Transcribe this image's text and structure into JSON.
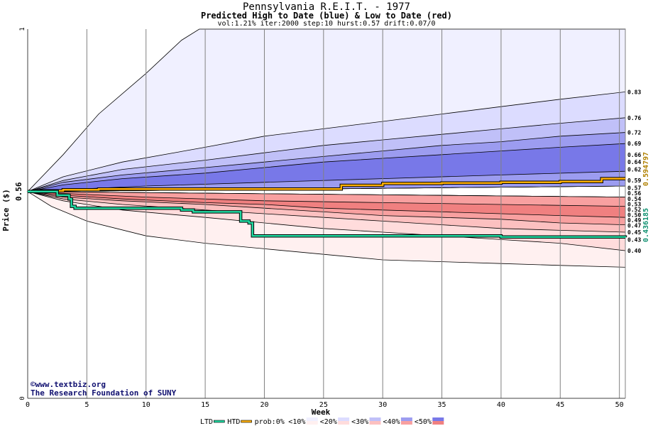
{
  "chart_data": {
    "type": "area",
    "title": "Pennsylvania R.E.I.T. - 1977",
    "subtitle": "Predicted High to Date (blue) &  Low to Date (red)",
    "params_line": "vol:1.21% iter:2000 step:10 hurst:0.57 drift:0.07/0",
    "xlabel": "Week",
    "ylabel": "Price ($)",
    "xlim": [
      0,
      50.5
    ],
    "ylim": [
      0,
      1
    ],
    "x_ticks": [
      0,
      5,
      10,
      15,
      20,
      25,
      30,
      35,
      40,
      45,
      50
    ],
    "y_ticks": [
      0,
      1
    ],
    "start_price": 0.56,
    "start_price_label": "0.56",
    "grid": true,
    "high_bands": [
      {
        "level": "<10%",
        "color": "#f0f0ff",
        "upper": [
          [
            0,
            0.56
          ],
          [
            3,
            0.66
          ],
          [
            6,
            0.77
          ],
          [
            10,
            0.88
          ],
          [
            13,
            0.97
          ],
          [
            14.5,
            1.0
          ],
          [
            50.5,
            1.0
          ]
        ],
        "lower": [
          [
            0,
            0.56
          ],
          [
            50.5,
            0.575
          ]
        ]
      },
      {
        "level": "<20%",
        "color": "#dcdcff",
        "upper": [
          [
            0,
            0.56
          ],
          [
            3,
            0.6
          ],
          [
            8,
            0.64
          ],
          [
            15,
            0.68
          ],
          [
            20,
            0.71
          ],
          [
            25,
            0.73
          ],
          [
            30,
            0.75
          ],
          [
            35,
            0.77
          ],
          [
            40,
            0.79
          ],
          [
            45,
            0.81
          ],
          [
            50.5,
            0.83
          ]
        ],
        "lower": [
          [
            0,
            0.56
          ],
          [
            50.5,
            0.575
          ]
        ]
      },
      {
        "level": "<30%",
        "color": "#c0c0f8",
        "upper": [
          [
            0,
            0.56
          ],
          [
            3,
            0.59
          ],
          [
            8,
            0.62
          ],
          [
            15,
            0.645
          ],
          [
            20,
            0.665
          ],
          [
            25,
            0.685
          ],
          [
            30,
            0.7
          ],
          [
            35,
            0.715
          ],
          [
            40,
            0.73
          ],
          [
            45,
            0.745
          ],
          [
            50.5,
            0.76
          ]
        ],
        "lower": [
          [
            0,
            0.56
          ],
          [
            50.5,
            0.575
          ]
        ]
      },
      {
        "level": "<40%",
        "color": "#9c9cf0",
        "upper": [
          [
            0,
            0.56
          ],
          [
            3,
            0.585
          ],
          [
            8,
            0.605
          ],
          [
            15,
            0.625
          ],
          [
            20,
            0.64
          ],
          [
            25,
            0.655
          ],
          [
            30,
            0.67
          ],
          [
            35,
            0.685
          ],
          [
            40,
            0.695
          ],
          [
            45,
            0.71
          ],
          [
            50.5,
            0.72
          ]
        ],
        "lower": [
          [
            0,
            0.56
          ],
          [
            50.5,
            0.575
          ]
        ]
      },
      {
        "level": "<50%",
        "color": "#7878e8",
        "upper": [
          [
            0,
            0.56
          ],
          [
            3,
            0.578
          ],
          [
            8,
            0.595
          ],
          [
            15,
            0.61
          ],
          [
            20,
            0.625
          ],
          [
            25,
            0.64
          ],
          [
            30,
            0.65
          ],
          [
            35,
            0.66
          ],
          [
            40,
            0.67
          ],
          [
            45,
            0.68
          ],
          [
            50.5,
            0.69
          ]
        ],
        "lower": [
          [
            0,
            0.56
          ],
          [
            3,
            0.565
          ],
          [
            10,
            0.575
          ],
          [
            20,
            0.585
          ],
          [
            30,
            0.595
          ],
          [
            40,
            0.605
          ],
          [
            50.5,
            0.615
          ]
        ]
      }
    ],
    "low_bands": [
      {
        "level": "<10%",
        "color": "#fff0f0",
        "upper": [
          [
            0,
            0.56
          ],
          [
            50.5,
            0.545
          ]
        ],
        "lower": [
          [
            0,
            0.56
          ],
          [
            2,
            0.52
          ],
          [
            5,
            0.48
          ],
          [
            10,
            0.44
          ],
          [
            15,
            0.42
          ],
          [
            20,
            0.405
          ],
          [
            25,
            0.39
          ],
          [
            30,
            0.375
          ],
          [
            35,
            0.37
          ],
          [
            40,
            0.365
          ],
          [
            45,
            0.36
          ],
          [
            50.5,
            0.355
          ]
        ]
      },
      {
        "level": "<20%",
        "color": "#ffdcdc",
        "upper": [
          [
            0,
            0.56
          ],
          [
            50.5,
            0.545
          ]
        ],
        "lower": [
          [
            0,
            0.56
          ],
          [
            3,
            0.535
          ],
          [
            8,
            0.51
          ],
          [
            15,
            0.49
          ],
          [
            20,
            0.475
          ],
          [
            25,
            0.46
          ],
          [
            30,
            0.45
          ],
          [
            35,
            0.44
          ],
          [
            40,
            0.43
          ],
          [
            45,
            0.42
          ],
          [
            50.5,
            0.4
          ]
        ]
      },
      {
        "level": "<30%",
        "color": "#fcc0c0",
        "upper": [
          [
            0,
            0.56
          ],
          [
            50.5,
            0.545
          ]
        ],
        "lower": [
          [
            0,
            0.56
          ],
          [
            3,
            0.54
          ],
          [
            8,
            0.525
          ],
          [
            15,
            0.51
          ],
          [
            20,
            0.5
          ],
          [
            25,
            0.49
          ],
          [
            30,
            0.48
          ],
          [
            35,
            0.47
          ],
          [
            40,
            0.46
          ],
          [
            45,
            0.455
          ],
          [
            50.5,
            0.45
          ]
        ]
      },
      {
        "level": "<40%",
        "color": "#f8a0a0",
        "upper": [
          [
            0,
            0.56
          ],
          [
            50.5,
            0.545
          ]
        ],
        "lower": [
          [
            0,
            0.56
          ],
          [
            3,
            0.545
          ],
          [
            8,
            0.535
          ],
          [
            15,
            0.525
          ],
          [
            20,
            0.515
          ],
          [
            25,
            0.505
          ],
          [
            30,
            0.495
          ],
          [
            35,
            0.49
          ],
          [
            40,
            0.485
          ],
          [
            45,
            0.475
          ],
          [
            50.5,
            0.47
          ]
        ]
      },
      {
        "level": "<50%",
        "color": "#f08080",
        "upper": [
          [
            0,
            0.56
          ],
          [
            3,
            0.555
          ],
          [
            10,
            0.545
          ],
          [
            20,
            0.535
          ],
          [
            30,
            0.53
          ],
          [
            40,
            0.525
          ],
          [
            50.5,
            0.52
          ]
        ],
        "lower": [
          [
            0,
            0.56
          ],
          [
            3,
            0.55
          ],
          [
            8,
            0.54
          ],
          [
            15,
            0.53
          ],
          [
            20,
            0.525
          ],
          [
            25,
            0.515
          ],
          [
            30,
            0.51
          ],
          [
            35,
            0.505
          ],
          [
            40,
            0.5
          ],
          [
            45,
            0.495
          ],
          [
            50.5,
            0.49
          ]
        ]
      }
    ],
    "htd_series": {
      "name": "HTD",
      "color": "#ffb000",
      "points": [
        [
          0,
          0.56
        ],
        [
          1,
          0.562
        ],
        [
          3,
          0.565
        ],
        [
          6,
          0.567
        ],
        [
          10,
          0.567
        ],
        [
          15,
          0.567
        ],
        [
          20,
          0.567
        ],
        [
          26,
          0.567
        ],
        [
          26.5,
          0.577
        ],
        [
          30,
          0.577
        ],
        [
          30,
          0.582
        ],
        [
          35,
          0.583
        ],
        [
          40,
          0.585
        ],
        [
          45,
          0.587
        ],
        [
          48,
          0.587
        ],
        [
          48.5,
          0.595
        ],
        [
          50.5,
          0.595
        ]
      ]
    },
    "ltd_series": {
      "name": "LTD",
      "color": "#20d8a0",
      "points": [
        [
          0,
          0.56
        ],
        [
          2,
          0.56
        ],
        [
          2.5,
          0.55
        ],
        [
          3.5,
          0.54
        ],
        [
          3.7,
          0.52
        ],
        [
          4,
          0.515
        ],
        [
          10,
          0.515
        ],
        [
          13,
          0.51
        ],
        [
          14,
          0.505
        ],
        [
          17.5,
          0.505
        ],
        [
          18,
          0.48
        ],
        [
          18.7,
          0.475
        ],
        [
          19,
          0.46
        ],
        [
          19,
          0.44
        ],
        [
          30,
          0.44
        ],
        [
          40,
          0.437
        ],
        [
          50.5,
          0.436
        ]
      ]
    },
    "right_labels": [
      "0.83",
      "0.76",
      "0.72",
      "0.69",
      "0.66",
      "0.64",
      "0.62",
      "0.59",
      "0.57",
      "0.56",
      "0.54",
      "0.53",
      "0.52",
      "0.50",
      "0.49",
      "0.47",
      "0.45",
      "0.43",
      "0.40"
    ],
    "right_label_values": [
      0.83,
      0.76,
      0.72,
      0.69,
      0.66,
      0.64,
      0.62,
      0.59,
      0.57,
      0.56,
      0.54,
      0.53,
      0.52,
      0.5,
      0.49,
      0.47,
      0.45,
      0.43,
      0.4
    ],
    "htd_final": "0.594797",
    "htd_final_color": "#b08000",
    "ltd_final": "0.436185",
    "ltd_final_color": "#109070",
    "watermark": [
      "©www.textbiz.org",
      "The Research Foundation of SUNY"
    ],
    "legend": {
      "placement": "bottom",
      "items": [
        {
          "label": "LTD",
          "swatch": "line",
          "color": "#20d8a0"
        },
        {
          "label": "HTD",
          "swatch": "line",
          "color": "#ffb000"
        },
        {
          "label": "prob:0%",
          "swatch": "none"
        },
        {
          "label": "<10%",
          "swatch": "split",
          "colors": [
            "#f0f0ff",
            "#fff0f0"
          ]
        },
        {
          "label": "<20%",
          "swatch": "split",
          "colors": [
            "#dcdcff",
            "#ffdcdc"
          ]
        },
        {
          "label": "<30%",
          "swatch": "split",
          "colors": [
            "#c0c0f8",
            "#fcc0c0"
          ]
        },
        {
          "label": "<40%",
          "swatch": "split",
          "colors": [
            "#9c9cf0",
            "#f8a0a0"
          ]
        },
        {
          "label": "<50%",
          "swatch": "split",
          "colors": [
            "#7878e8",
            "#f08080"
          ]
        }
      ]
    }
  }
}
